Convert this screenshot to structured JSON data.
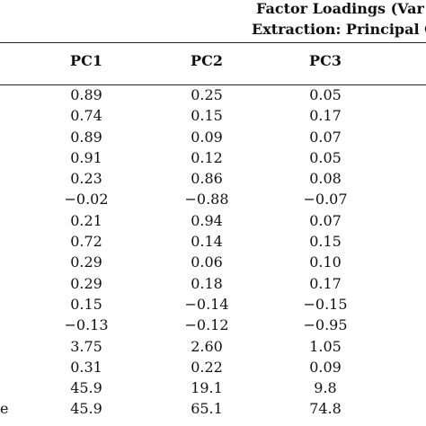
{
  "header": {
    "line1": "Factor Loadings (Var",
    "line2": "Extraction: Principal C"
  },
  "columns": [
    "PC1",
    "PC2",
    "PC3"
  ],
  "rows": [
    {
      "label": "",
      "values": [
        "0.89",
        "0.25",
        "0.05"
      ]
    },
    {
      "label": "",
      "values": [
        "0.74",
        "0.15",
        "0.17"
      ]
    },
    {
      "label": "",
      "values": [
        "0.89",
        "0.09",
        "0.07"
      ]
    },
    {
      "label": "",
      "values": [
        "0.91",
        "0.12",
        "0.05"
      ]
    },
    {
      "label": "",
      "values": [
        "0.23",
        "0.86",
        "0.08"
      ]
    },
    {
      "label": "",
      "values": [
        "−0.02",
        "−0.88",
        "−0.07"
      ]
    },
    {
      "label": "",
      "values": [
        "0.21",
        "0.94",
        "0.07"
      ]
    },
    {
      "label": "",
      "values": [
        "0.72",
        "0.14",
        "0.15"
      ]
    },
    {
      "label": "",
      "values": [
        "0.29",
        "0.06",
        "0.10"
      ]
    },
    {
      "label": "",
      "values": [
        "0.29",
        "0.18",
        "0.17"
      ]
    },
    {
      "label": "",
      "values": [
        "0.15",
        "−0.14",
        "−0.15"
      ]
    },
    {
      "label": "",
      "values": [
        "−0.13",
        "−0.12",
        "−0.95"
      ]
    },
    {
      "label": "",
      "values": [
        "3.75",
        "2.60",
        "1.05"
      ]
    },
    {
      "label": "",
      "values": [
        "0.31",
        "0.22",
        "0.09"
      ]
    },
    {
      "label": "",
      "values": [
        "45.9",
        "19.1",
        "9.8"
      ]
    },
    {
      "label": "e",
      "values": [
        "45.9",
        "65.1",
        "74.8"
      ]
    }
  ]
}
